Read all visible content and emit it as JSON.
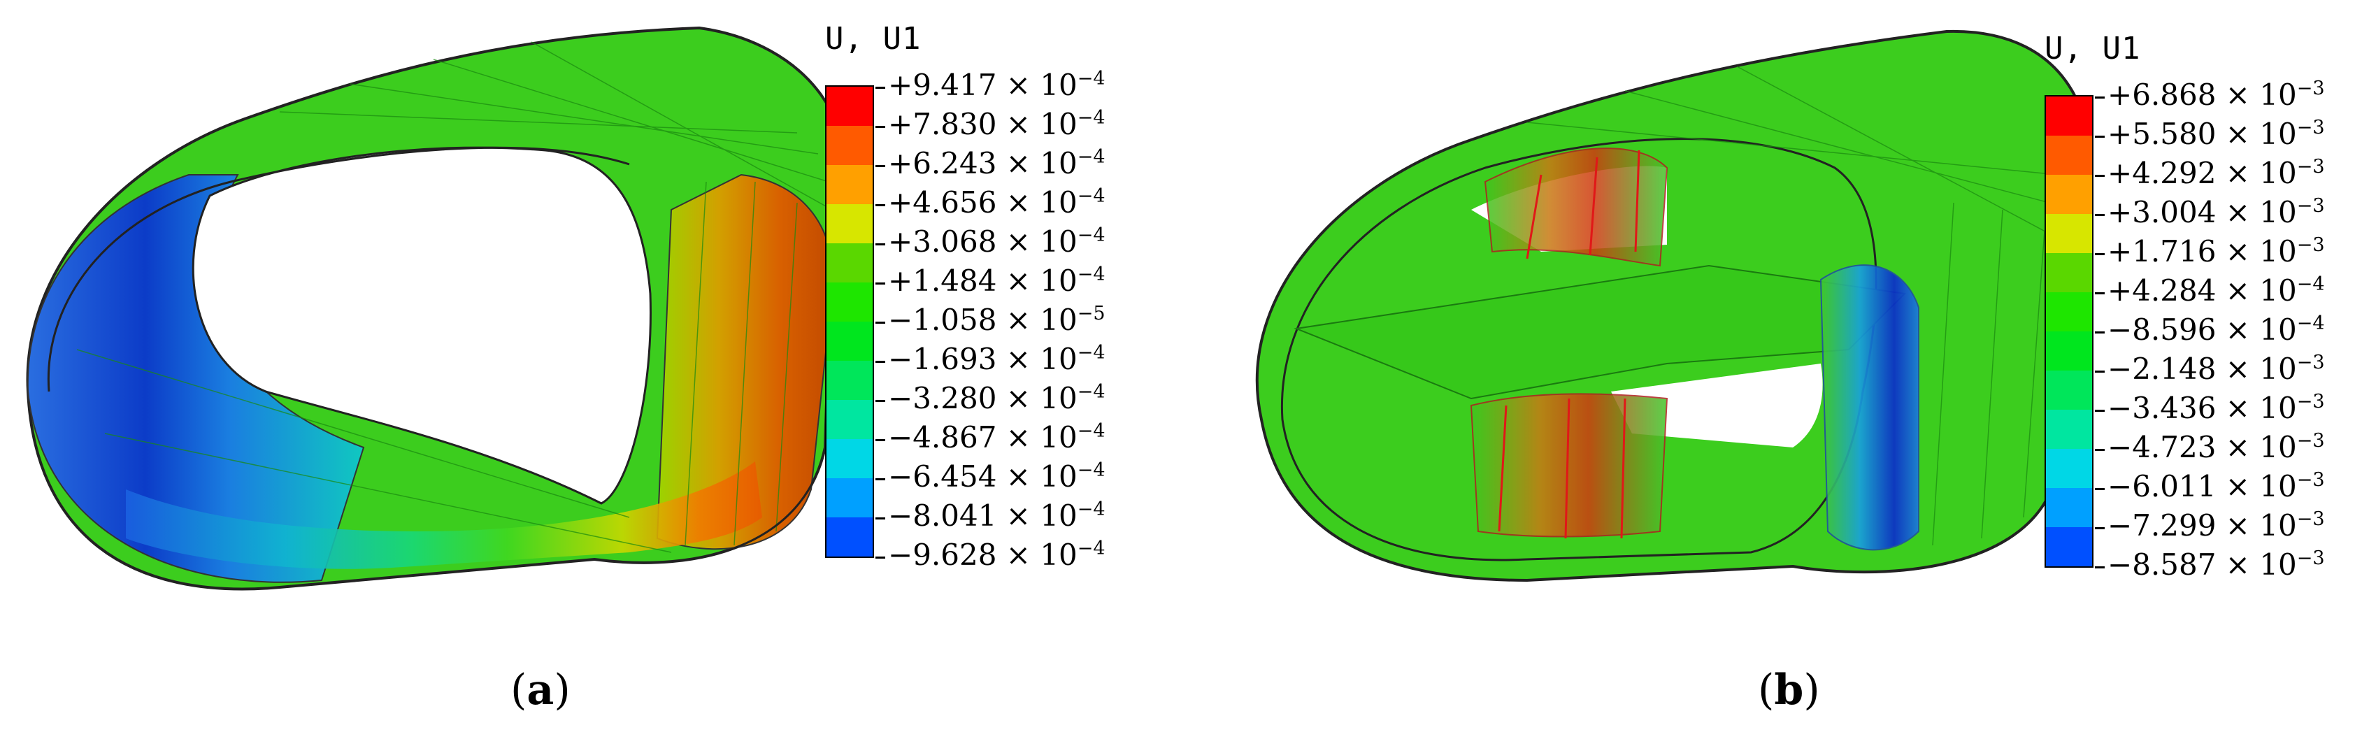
{
  "panels": [
    {
      "id": "a",
      "legend": {
        "title": "U, U1",
        "labels": [
          "+9.417 × 10",
          "+7.830 × 10",
          "+6.243 × 10",
          "+4.656 × 10",
          "+3.068 × 10",
          "+1.484 × 10",
          "−1.058 × 10",
          "−1.693 × 10",
          "−3.280 × 10",
          "−4.867 × 10",
          "−6.454 × 10",
          "−8.041 × 10",
          "−9.628 × 10"
        ],
        "exponents": [
          "−4",
          "−4",
          "−4",
          "−4",
          "−4",
          "−4",
          "−5",
          "−4",
          "−4",
          "−4",
          "−4",
          "−4",
          "−4"
        ],
        "colors": [
          "#ff0000",
          "#ff5a00",
          "#ffa000",
          "#d7e600",
          "#5ad700",
          "#1ee600",
          "#00e61e",
          "#00e65a",
          "#00e6a0",
          "#00d7e6",
          "#00a0ff",
          "#0050ff",
          "#0000e6"
        ]
      },
      "caption_open": "(",
      "caption_letter": "a",
      "caption_close": ")"
    },
    {
      "id": "b",
      "legend": {
        "title": "U, U1",
        "labels": [
          "+6.868 × 10",
          "+5.580 × 10",
          "+4.292 × 10",
          "+3.004 × 10",
          "+1.716 × 10",
          "+4.284 × 10",
          "−8.596 × 10",
          "−2.148 × 10",
          "−3.436 × 10",
          "−4.723 × 10",
          "−6.011 × 10",
          "−7.299 × 10",
          "−8.587 × 10"
        ],
        "exponents": [
          "−3",
          "−3",
          "−3",
          "−3",
          "−3",
          "−4",
          "−4",
          "−3",
          "−3",
          "−3",
          "−3",
          "−3",
          "−3"
        ],
        "colors": [
          "#ff0000",
          "#ff5a00",
          "#ffa000",
          "#d7e600",
          "#5ad700",
          "#1ee600",
          "#00e61e",
          "#00e65a",
          "#00e6a0",
          "#00d7e6",
          "#00a0ff",
          "#0050ff",
          "#0000e6"
        ]
      },
      "caption_open": "(",
      "caption_letter": "b",
      "caption_close": ")"
    }
  ]
}
